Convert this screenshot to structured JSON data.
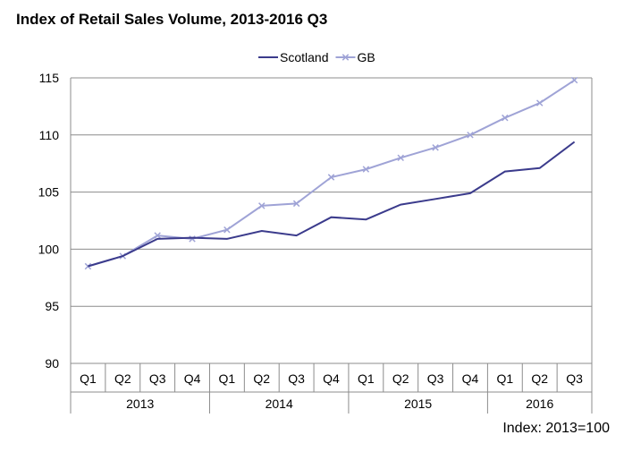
{
  "chart_data": {
    "type": "line",
    "title": "Index of Retail Sales Volume, 2013-2016 Q3",
    "note": "Index: 2013=100",
    "xlabel": "",
    "ylabel": "",
    "quarters": [
      "Q1",
      "Q2",
      "Q3",
      "Q4",
      "Q1",
      "Q2",
      "Q3",
      "Q4",
      "Q1",
      "Q2",
      "Q3",
      "Q4",
      "Q1",
      "Q2",
      "Q3"
    ],
    "years": [
      {
        "label": "2013",
        "count": 4
      },
      {
        "label": "2014",
        "count": 4
      },
      {
        "label": "2015",
        "count": 4
      },
      {
        "label": "2016",
        "count": 3
      }
    ],
    "ylim": [
      90,
      115
    ],
    "yticks": [
      90,
      95,
      100,
      105,
      110,
      115
    ],
    "grid": true,
    "legend": "top-center",
    "series": [
      {
        "name": "Scotland",
        "color": "#3b3b8c",
        "marker": "none",
        "values": [
          98.5,
          99.4,
          100.9,
          101.0,
          100.9,
          101.6,
          101.2,
          102.8,
          102.6,
          103.9,
          104.4,
          104.9,
          106.8,
          107.1,
          109.4
        ]
      },
      {
        "name": "GB",
        "color": "#9fa3d6",
        "marker": "x",
        "values": [
          98.5,
          99.4,
          101.2,
          100.9,
          101.7,
          103.8,
          104.0,
          106.3,
          107.0,
          108.0,
          108.9,
          110.0,
          111.5,
          112.8,
          114.8
        ]
      }
    ]
  }
}
